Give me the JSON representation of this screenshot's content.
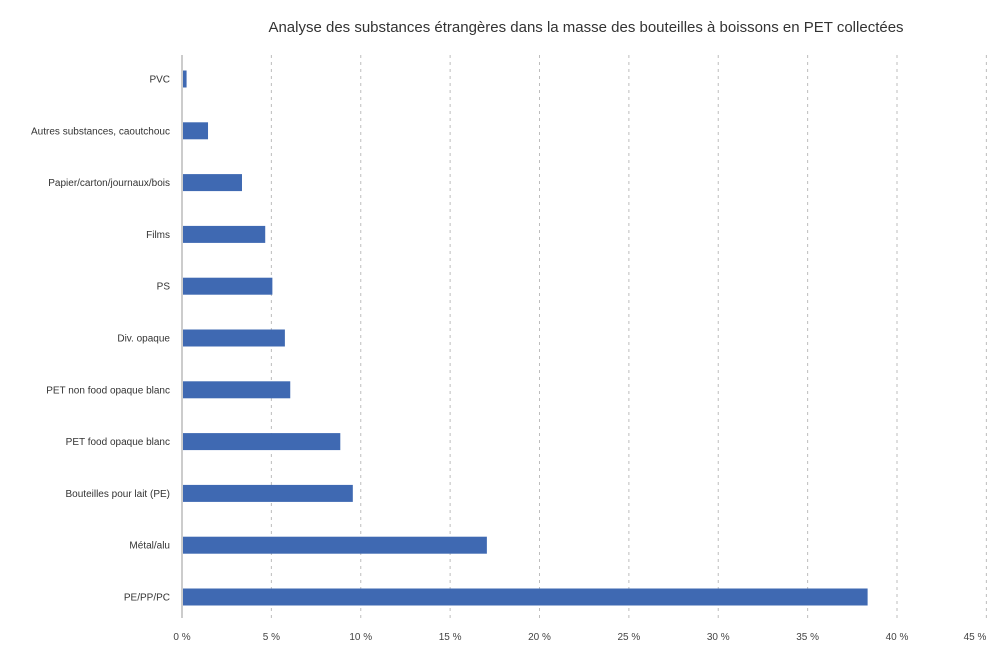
{
  "chart_data": {
    "type": "bar",
    "orientation": "horizontal",
    "title": "Analyse des substances étrangères dans la masse des bouteilles à boissons en PET collectées",
    "categories": [
      "PVC",
      "Autres substances, caoutchouc",
      "Papier/carton/journaux/bois",
      "Films",
      "PS",
      "Div. opaque",
      "PET non food opaque blanc",
      "PET food opaque blanc",
      "Bouteilles pour lait (PE)",
      "Métal/alu",
      "PE/PP/PC"
    ],
    "values": [
      0.2,
      1.4,
      3.3,
      4.6,
      5.0,
      5.7,
      6.0,
      8.8,
      9.5,
      17.0,
      38.3
    ],
    "xlim": [
      0,
      45
    ],
    "ticks": [
      0,
      5,
      10,
      15,
      20,
      25,
      30,
      35,
      40,
      45
    ],
    "tick_labels": [
      "0 %",
      "5 %",
      "10 %",
      "15 %",
      "20 %",
      "25 %",
      "30 %",
      "35 %",
      "40 %",
      "45 %"
    ],
    "grid": true,
    "legend": "none",
    "bar_color": "#3f69b2"
  }
}
